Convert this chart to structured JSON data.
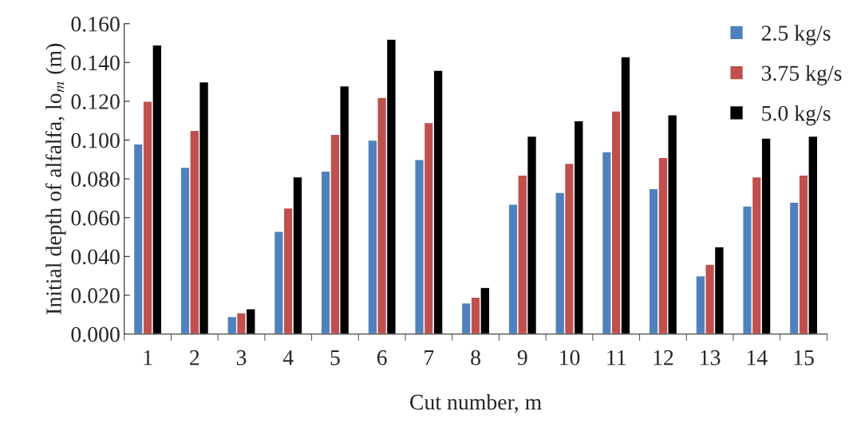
{
  "chart_data": {
    "type": "bar",
    "xlabel": "Cut number, m",
    "ylabel": "Initial depth of alfalfa, lo$_{m}$ (m)",
    "categories": [
      "1",
      "2",
      "3",
      "4",
      "5",
      "6",
      "7",
      "8",
      "9",
      "10",
      "11",
      "12",
      "13",
      "14",
      "15"
    ],
    "series": [
      {
        "name": "2.5 kg/s",
        "color": "#4f81bd",
        "values": [
          0.098,
          0.086,
          0.009,
          0.053,
          0.084,
          0.1,
          0.09,
          0.016,
          0.067,
          0.073,
          0.094,
          0.075,
          0.03,
          0.066,
          0.068
        ]
      },
      {
        "name": "3.75 kg/s",
        "color": "#c0504d",
        "values": [
          0.12,
          0.105,
          0.011,
          0.065,
          0.103,
          0.122,
          0.109,
          0.019,
          0.082,
          0.088,
          0.115,
          0.091,
          0.036,
          0.081,
          0.082
        ]
      },
      {
        "name": "5.0 kg/s",
        "color": "#000000",
        "values": [
          0.149,
          0.13,
          0.013,
          0.081,
          0.128,
          0.152,
          0.136,
          0.024,
          0.102,
          0.11,
          0.143,
          0.113,
          0.045,
          0.101,
          0.102
        ]
      }
    ],
    "ylim": [
      0,
      0.16
    ],
    "yticks": [
      {
        "value": 0,
        "label": "0.000"
      },
      {
        "value": 0.02,
        "label": "0.020"
      },
      {
        "value": 0.04,
        "label": "0.040"
      },
      {
        "value": 0.06,
        "label": "0.060"
      },
      {
        "value": 0.08,
        "label": "0.080"
      },
      {
        "value": 0.1,
        "label": "0.100"
      },
      {
        "value": 0.12,
        "label": "0.120"
      },
      {
        "value": 0.14,
        "label": "0.140"
      },
      {
        "value": 0.16,
        "label": "0.160"
      }
    ],
    "grid": false,
    "legend": "top right"
  }
}
